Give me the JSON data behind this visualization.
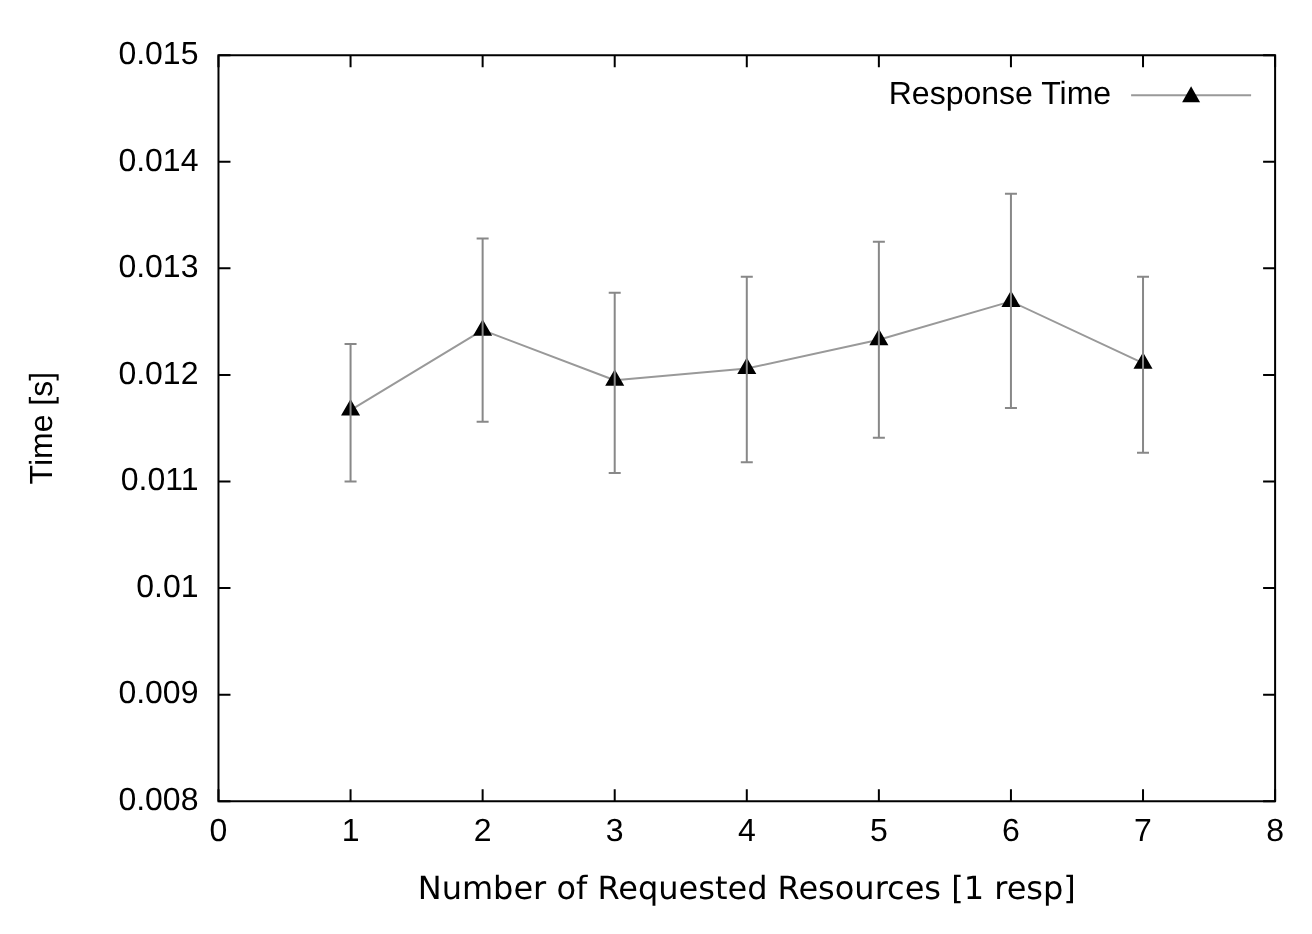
{
  "chart_data": {
    "type": "line",
    "xlabel": "Number of Requested Resources [1 resp]",
    "ylabel": "Time [s]",
    "x": [
      1,
      2,
      3,
      4,
      5,
      6,
      7
    ],
    "series": [
      {
        "name": "Response Time",
        "color": "#000000",
        "values": [
          0.01167,
          0.01242,
          0.01195,
          0.01206,
          0.01233,
          0.01269,
          0.01211
        ],
        "errors": [
          [
            0.011,
            0.01229
          ],
          [
            0.01156,
            0.01328
          ],
          [
            0.01108,
            0.01277
          ],
          [
            0.01118,
            0.01292
          ],
          [
            0.01141,
            0.01325
          ],
          [
            0.01169,
            0.0137
          ],
          [
            0.01127,
            0.01292
          ]
        ]
      }
    ],
    "xlim": [
      0,
      8
    ],
    "xticks": [
      0,
      1,
      2,
      3,
      4,
      5,
      6,
      7,
      8
    ],
    "ylim": [
      0.008,
      0.015
    ],
    "yticks": [
      0.008,
      0.009,
      0.01,
      0.011,
      0.012,
      0.013,
      0.014,
      0.015
    ],
    "grid": false,
    "legend": "top right",
    "marker": "triangle",
    "line_style": "solid"
  }
}
